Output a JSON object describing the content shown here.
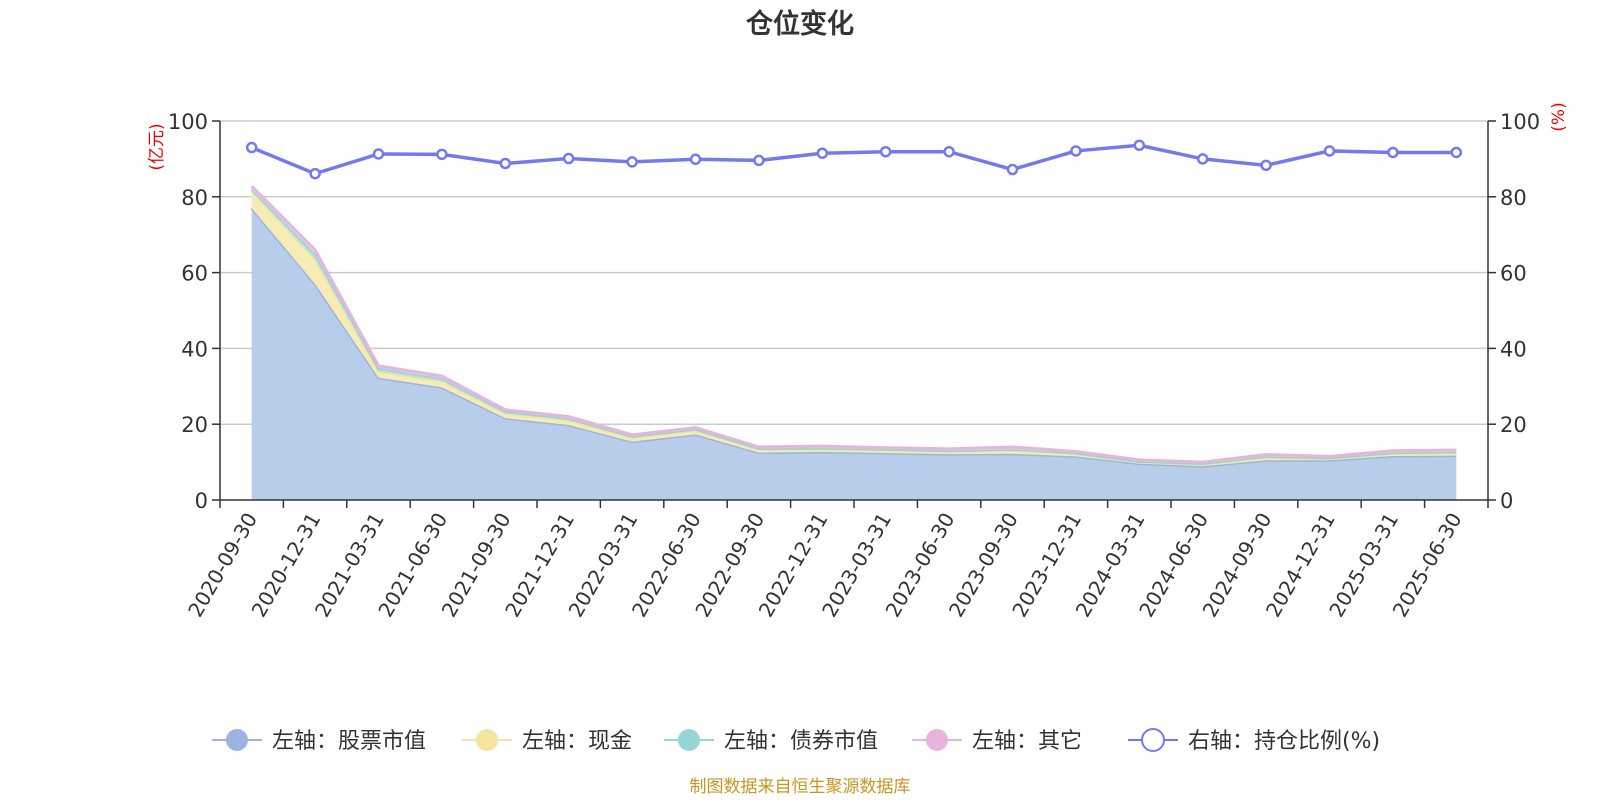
{
  "chart_data": {
    "type": "area",
    "title": "仓位变化",
    "left_unit": "(亿元)",
    "right_unit": "(%)",
    "categories": [
      "2020-09-30",
      "2020-12-31",
      "2021-03-31",
      "2021-06-30",
      "2021-09-30",
      "2021-12-31",
      "2022-03-31",
      "2022-06-30",
      "2022-09-30",
      "2022-12-31",
      "2023-03-31",
      "2023-06-30",
      "2023-09-30",
      "2023-12-31",
      "2024-03-31",
      "2024-06-30",
      "2024-09-30",
      "2024-12-31",
      "2025-03-31",
      "2025-06-30"
    ],
    "left_axis": {
      "min": 0,
      "max": 100,
      "ticks": [
        0,
        20,
        40,
        60,
        80,
        100
      ]
    },
    "right_axis": {
      "min": 0,
      "max": 100,
      "ticks": [
        0,
        20,
        40,
        60,
        80,
        100
      ]
    },
    "grid": true,
    "legend_position": "bottom",
    "series": [
      {
        "name": "左轴：股票市值",
        "axis": "left",
        "kind": "area",
        "color": "#9bb5e0",
        "fill": "#b8cdea",
        "values": [
          77.0,
          57.0,
          32.3,
          29.7,
          21.6,
          19.8,
          15.4,
          17.3,
          12.5,
          12.7,
          12.4,
          12.1,
          12.2,
          11.5,
          9.6,
          8.9,
          10.5,
          10.5,
          11.6,
          11.7
        ]
      },
      {
        "name": "左轴：现金",
        "axis": "left",
        "kind": "area",
        "color": "#f5e3a0",
        "fill": "#f8ebb5",
        "values": [
          4.5,
          6.5,
          1.6,
          1.6,
          1.2,
          1.2,
          1.0,
          1.0,
          0.8,
          0.7,
          0.7,
          0.6,
          0.9,
          0.6,
          0.4,
          0.5,
          0.7,
          0.4,
          0.6,
          0.7
        ]
      },
      {
        "name": "左轴：债券市值",
        "axis": "left",
        "kind": "area",
        "color": "#95d5d5",
        "fill": "#b4e1e1",
        "values": [
          0.5,
          1.5,
          0.9,
          0.8,
          0.6,
          0.5,
          0.4,
          0.4,
          0.3,
          0.3,
          0.3,
          0.3,
          0.3,
          0.3,
          0.2,
          0.2,
          0.3,
          0.2,
          0.3,
          0.3
        ]
      },
      {
        "name": "左轴：其它",
        "axis": "left",
        "kind": "area",
        "color": "#e6b4dc",
        "fill": "#edcde6",
        "values": [
          0.8,
          1.0,
          0.6,
          0.6,
          0.4,
          0.5,
          0.4,
          0.4,
          0.4,
          0.5,
          0.4,
          0.5,
          0.6,
          0.4,
          0.4,
          0.4,
          0.5,
          0.4,
          0.5,
          0.5
        ]
      },
      {
        "name": "右轴：持仓比例(%)",
        "axis": "right",
        "kind": "line",
        "color": "#7479ee",
        "values": [
          93.0,
          86.1,
          91.3,
          91.2,
          88.8,
          90.1,
          89.2,
          89.9,
          89.6,
          91.5,
          91.9,
          91.9,
          87.2,
          92.1,
          93.6,
          90.0,
          88.3,
          92.1,
          91.7,
          91.7
        ]
      }
    ],
    "source_note": "制图数据来自恒生聚源数据库"
  }
}
